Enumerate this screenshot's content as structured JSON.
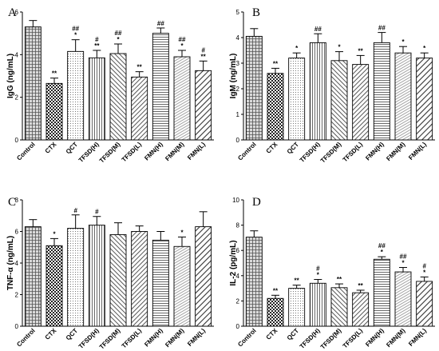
{
  "chart_data": [
    {
      "type": "bar",
      "title": "A",
      "ylabel": "IgG (ng/mL)",
      "ylim": [
        0,
        6
      ],
      "yticks": [
        0,
        2,
        4,
        6
      ],
      "categories": [
        "Control",
        "CTX",
        "QCT",
        "TFSD(H)",
        "TFSD(M)",
        "TFSD(L)",
        "FMN(H)",
        "FMN(M)",
        "FMN(L)"
      ],
      "values": [
        5.3,
        2.65,
        4.15,
        3.85,
        4.05,
        2.95,
        5.0,
        3.9,
        3.25
      ],
      "errors": [
        0.3,
        0.25,
        0.55,
        0.35,
        0.45,
        0.25,
        0.25,
        0.3,
        0.45
      ],
      "significance": [
        [
          "",
          ""
        ],
        [
          "**",
          ""
        ],
        [
          "*",
          "##"
        ],
        [
          "**",
          "#"
        ],
        [
          "*",
          "##"
        ],
        [
          "**",
          ""
        ],
        [
          "",
          "##"
        ],
        [
          "*",
          "##"
        ],
        [
          "**",
          "#"
        ]
      ]
    },
    {
      "type": "bar",
      "title": "B",
      "ylabel": "IgM (ng/mL)",
      "ylim": [
        0,
        5
      ],
      "yticks": [
        0,
        1,
        2,
        3,
        4,
        5
      ],
      "categories": [
        "Control",
        "CTX",
        "QCT",
        "TFSD(H)",
        "TFSD(M)",
        "TFSD(L)",
        "FMN(H)",
        "FMN(M)",
        "FMN(L)"
      ],
      "values": [
        4.05,
        2.6,
        3.2,
        3.8,
        3.1,
        2.95,
        3.8,
        3.4,
        3.2
      ],
      "errors": [
        0.3,
        0.2,
        0.2,
        0.35,
        0.35,
        0.35,
        0.4,
        0.25,
        0.2
      ],
      "significance": [
        [
          "",
          ""
        ],
        [
          "**",
          ""
        ],
        [
          "*",
          ""
        ],
        [
          "",
          "##"
        ],
        [
          "*",
          ""
        ],
        [
          "**",
          ""
        ],
        [
          "",
          "##"
        ],
        [
          "*",
          ""
        ],
        [
          "*",
          ""
        ]
      ]
    },
    {
      "type": "bar",
      "title": "C",
      "ylabel": "TNF-α (ng/mL)",
      "ylim": [
        0,
        8
      ],
      "yticks": [
        0,
        2,
        4,
        6,
        8
      ],
      "categories": [
        "Control",
        "CTX",
        "QCT",
        "TFSD(H)",
        "TFSD(M)",
        "TFSD(L)",
        "FMN(H)",
        "FMN(M)",
        "FMN(L)"
      ],
      "values": [
        6.3,
        5.1,
        6.2,
        6.4,
        5.8,
        6.0,
        5.45,
        5.05,
        6.3
      ],
      "errors": [
        0.45,
        0.45,
        0.85,
        0.55,
        0.75,
        0.35,
        0.55,
        0.6,
        0.95
      ],
      "significance": [
        [
          "",
          ""
        ],
        [
          "*",
          ""
        ],
        [
          "",
          "#"
        ],
        [
          "",
          "#"
        ],
        [
          "",
          ""
        ],
        [
          "",
          ""
        ],
        [
          "",
          ""
        ],
        [
          "*",
          ""
        ],
        [
          "",
          ""
        ]
      ]
    },
    {
      "type": "bar",
      "title": "D",
      "ylabel": "IL-2 (pg/mL)",
      "ylim": [
        0,
        10
      ],
      "yticks": [
        0,
        2,
        4,
        6,
        8,
        10
      ],
      "categories": [
        "Control",
        "CTX",
        "QCT",
        "TFSD(H)",
        "TFSD(M)",
        "TFSD(L)",
        "FMN(H)",
        "FMN(M)",
        "FMN(L)"
      ],
      "values": [
        7.05,
        2.2,
        3.0,
        3.4,
        3.05,
        2.65,
        5.3,
        4.3,
        3.55
      ],
      "errors": [
        0.5,
        0.25,
        0.25,
        0.3,
        0.3,
        0.2,
        0.2,
        0.35,
        0.35
      ],
      "significance": [
        [
          "",
          ""
        ],
        [
          "**",
          ""
        ],
        [
          "**",
          ""
        ],
        [
          "*",
          "#"
        ],
        [
          "**",
          ""
        ],
        [
          "**",
          ""
        ],
        [
          "*",
          "##"
        ],
        [
          "*",
          "##"
        ],
        [
          "*",
          "#"
        ]
      ]
    }
  ]
}
